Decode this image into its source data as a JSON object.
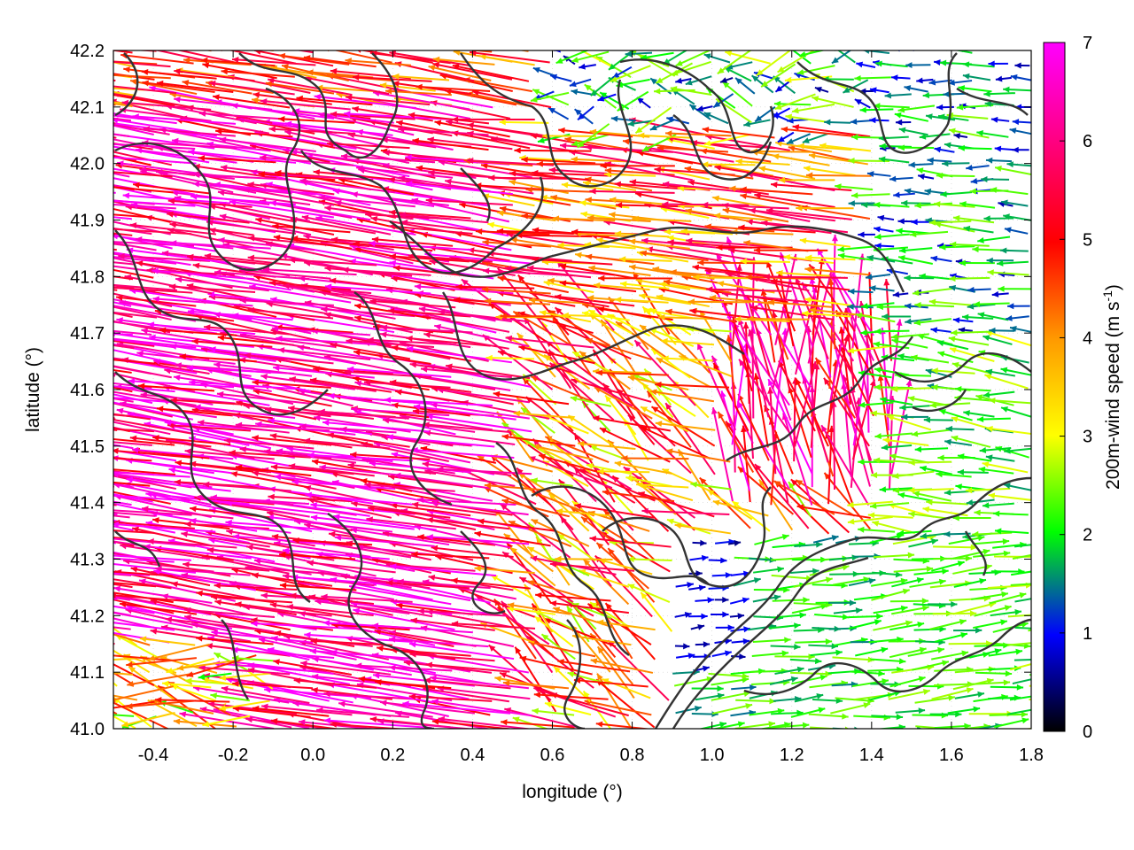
{
  "chart_data": {
    "type": "vector-field",
    "xlabel": "longitude (°)",
    "ylabel": "latitude (°)",
    "xlim": [
      -0.5,
      1.8
    ],
    "ylim": [
      41.0,
      42.2
    ],
    "x_ticks": [
      "-0.4",
      "-0.2",
      "0.0",
      "0.2",
      "0.4",
      "0.6",
      "0.8",
      "1.0",
      "1.2",
      "1.4",
      "1.6",
      "1.8"
    ],
    "x_tick_values": [
      -0.4,
      -0.2,
      0.0,
      0.2,
      0.4,
      0.6,
      0.8,
      1.0,
      1.2,
      1.4,
      1.6,
      1.8
    ],
    "y_ticks": [
      "41.0",
      "41.1",
      "41.2",
      "41.3",
      "41.4",
      "41.5",
      "41.6",
      "41.7",
      "41.8",
      "41.9",
      "42.0",
      "42.1",
      "42.2"
    ],
    "y_tick_values": [
      41.0,
      41.1,
      41.2,
      41.3,
      41.4,
      41.5,
      41.6,
      41.7,
      41.8,
      41.9,
      42.0,
      42.1,
      42.2
    ],
    "colorbar": {
      "label_main": "200m-wind speed (m s",
      "label_sup": "-1",
      "label_end": ")",
      "range": [
        0,
        7
      ],
      "ticks": [
        "0",
        "1",
        "2",
        "3",
        "4",
        "5",
        "6",
        "7"
      ],
      "tick_values": [
        0,
        1,
        2,
        3,
        4,
        5,
        6,
        7
      ],
      "palette": [
        "#000000",
        "#0000ff",
        "#00ff00",
        "#ffff00",
        "#ff9900",
        "#ff0000",
        "#ff00ff"
      ]
    },
    "grid": "dotted",
    "vector_field": {
      "description_of_regimes": [
        {
          "region": "west",
          "lon": [
            -0.5,
            0.6
          ],
          "lat": [
            41.0,
            42.2
          ],
          "direction": "westward, slightly northwest",
          "speed": [
            5,
            7
          ]
        },
        {
          "region": "center-north",
          "lon": [
            0.6,
            1.5
          ],
          "lat": [
            41.6,
            42.0
          ],
          "direction": "westward",
          "speed": [
            3,
            6
          ]
        },
        {
          "region": "north-east",
          "lon": [
            1.3,
            1.8
          ],
          "lat": [
            41.7,
            42.2
          ],
          "direction": "westward",
          "speed": [
            0.5,
            2.5
          ]
        },
        {
          "region": "center",
          "lon": [
            1.1,
            1.4
          ],
          "lat": [
            41.4,
            41.7
          ],
          "direction": "north-northwest",
          "speed": [
            5,
            7
          ]
        },
        {
          "region": "south-east",
          "lon": [
            0.9,
            1.8
          ],
          "lat": [
            41.0,
            41.35
          ],
          "direction": "eastward",
          "speed": [
            1,
            2.5
          ]
        }
      ]
    }
  }
}
